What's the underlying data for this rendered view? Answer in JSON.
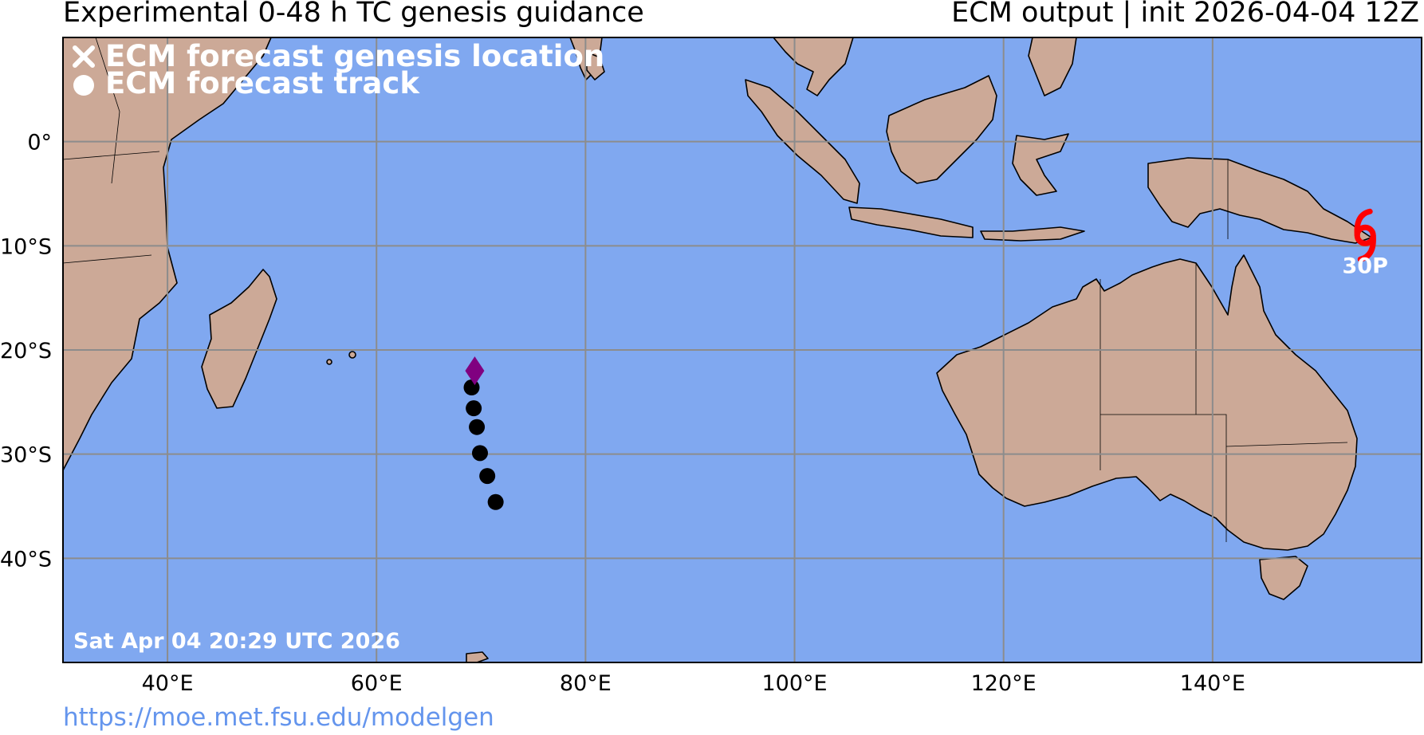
{
  "header": {
    "title_left": "Experimental 0-48 h TC genesis guidance",
    "title_right": "ECM output | init 2026-04-04 12Z"
  },
  "legend": {
    "items": [
      {
        "symbol": "x-marker-icon",
        "label": "ECM forecast genesis location"
      },
      {
        "symbol": "circle-marker-icon",
        "label": "ECM forecast track"
      }
    ]
  },
  "map": {
    "lon_range": [
      30,
      160
    ],
    "lat_range": [
      -50,
      10
    ],
    "ocean_color": "#80a8f0",
    "land_color": "#cca997",
    "grid_color": "#8c8c8c",
    "x_ticks": [
      {
        "lon": 40,
        "label": "40°E"
      },
      {
        "lon": 60,
        "label": "60°E"
      },
      {
        "lon": 80,
        "label": "80°E"
      },
      {
        "lon": 100,
        "label": "100°E"
      },
      {
        "lon": 120,
        "label": "120°E"
      },
      {
        "lon": 140,
        "label": "140°E"
      }
    ],
    "y_ticks": [
      {
        "lat": 0,
        "label": "0°"
      },
      {
        "lat": -10,
        "label": "10°S"
      },
      {
        "lat": -20,
        "label": "20°S"
      },
      {
        "lat": -30,
        "label": "30°S"
      },
      {
        "lat": -40,
        "label": "40°S"
      }
    ],
    "genesis_marker": {
      "lon": 69.4,
      "lat": -22.0,
      "color": "#800080"
    },
    "track_points": [
      {
        "lon": 69.1,
        "lat": -23.6
      },
      {
        "lon": 69.3,
        "lat": -25.6
      },
      {
        "lon": 69.6,
        "lat": -27.4
      },
      {
        "lon": 69.9,
        "lat": -29.9
      },
      {
        "lon": 70.6,
        "lat": -32.1
      },
      {
        "lon": 71.4,
        "lat": -34.6
      }
    ],
    "storm": {
      "lon": 154.6,
      "lat": -9.0,
      "label": "30P",
      "color": "#ff0000"
    },
    "timestamp": "Sat Apr 04 20:29 UTC 2026"
  },
  "footer": {
    "url": "https://moe.met.fsu.edu/modelgen"
  }
}
